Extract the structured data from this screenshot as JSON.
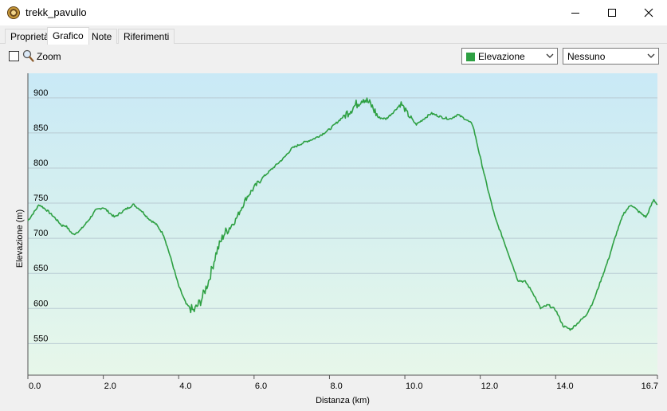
{
  "window": {
    "title": "trekk_pavullo"
  },
  "tabs": [
    {
      "label": "Proprietà",
      "active": false
    },
    {
      "label": "Grafico",
      "active": true
    },
    {
      "label": "Note",
      "active": false
    },
    {
      "label": "Riferimenti",
      "active": false
    }
  ],
  "toolbar": {
    "zoom_label": "Zoom",
    "zoom_checked": false,
    "series_select": "Elevazione",
    "series_color": "#2ea043",
    "compare_select": "Nessuno"
  },
  "chart_data": {
    "type": "line",
    "title": "",
    "xlabel": "Distanza  (km)",
    "ylabel": "Elevazione (m)",
    "xlim": [
      0,
      16.7
    ],
    "ylim": [
      505,
      935
    ],
    "x_ticks": [
      "0.0",
      "2.0",
      "4.0",
      "6.0",
      "8.0",
      "10.0",
      "12.0",
      "14.0",
      "16.7"
    ],
    "y_ticks": [
      "900",
      "850",
      "800",
      "750",
      "700",
      "650",
      "600",
      "550"
    ],
    "grid": true,
    "line_color": "#2ea043",
    "series": [
      {
        "x": [
          0,
          0.2,
          0.3,
          0.5,
          0.7,
          0.9,
          1.0,
          1.2,
          1.4,
          1.6,
          1.8,
          2.0,
          2.3,
          2.5,
          2.8,
          3.0,
          3.2,
          3.4,
          3.6,
          3.8,
          4.0,
          4.2,
          4.4,
          4.6,
          4.8,
          5.0,
          5.2,
          5.5,
          5.8,
          6.0,
          6.2,
          6.5,
          6.8,
          7.0,
          7.3,
          7.6,
          7.8,
          8.0,
          8.3,
          8.6,
          8.9,
          9.1,
          9.3,
          9.5,
          9.7,
          9.9,
          10.1,
          10.3,
          10.5,
          10.7,
          11.0,
          11.2,
          11.4,
          11.6,
          11.8,
          12.0,
          12.2,
          12.4,
          12.6,
          12.8,
          13.0,
          13.2,
          13.4,
          13.6,
          13.8,
          14.0,
          14.2,
          14.4,
          14.6,
          14.8,
          15.0,
          15.2,
          15.4,
          15.6,
          15.8,
          16.0,
          16.2,
          16.4,
          16.6,
          16.7
        ],
        "y": [
          725,
          740,
          748,
          740,
          730,
          718,
          718,
          705,
          712,
          725,
          740,
          744,
          730,
          738,
          748,
          740,
          728,
          720,
          705,
          670,
          632,
          606,
          596,
          612,
          640,
          680,
          706,
          725,
          758,
          772,
          785,
          800,
          815,
          828,
          836,
          842,
          848,
          855,
          870,
          885,
          900,
          890,
          872,
          870,
          880,
          892,
          875,
          862,
          870,
          878,
          872,
          870,
          876,
          870,
          862,
          815,
          770,
          728,
          700,
          670,
          640,
          638,
          622,
          600,
          605,
          598,
          575,
          570,
          580,
          590,
          610,
          640,
          670,
          705,
          735,
          748,
          738,
          730,
          755,
          748
        ]
      }
    ]
  }
}
